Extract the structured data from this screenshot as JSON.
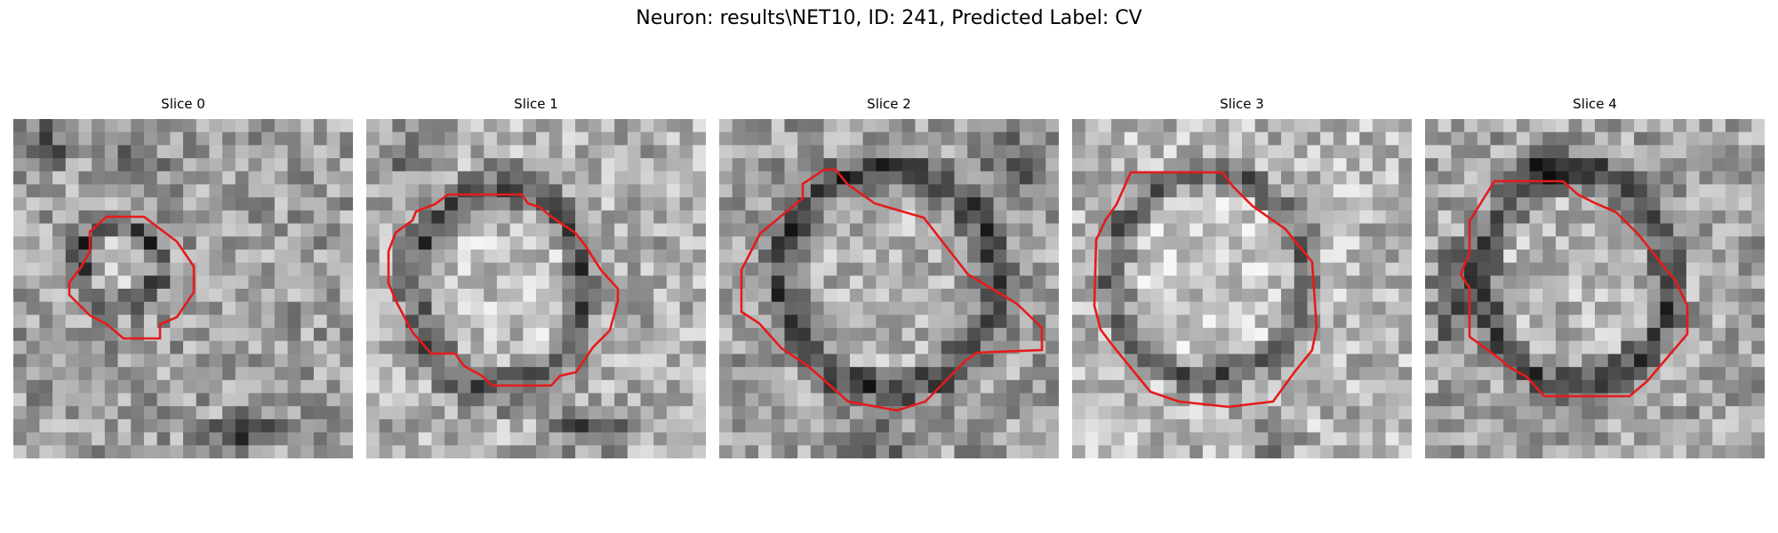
{
  "figure": {
    "title": "Neuron: results\\NET10, ID: 241, Predicted Label: CV"
  },
  "panels": [
    {
      "title": "Slice 0"
    },
    {
      "title": "Slice 1"
    },
    {
      "title": "Slice 2"
    },
    {
      "title": "Slice 3"
    },
    {
      "title": "Slice 4"
    }
  ],
  "colors": {
    "contour": "#e51b1b",
    "background": "#ffffff"
  }
}
